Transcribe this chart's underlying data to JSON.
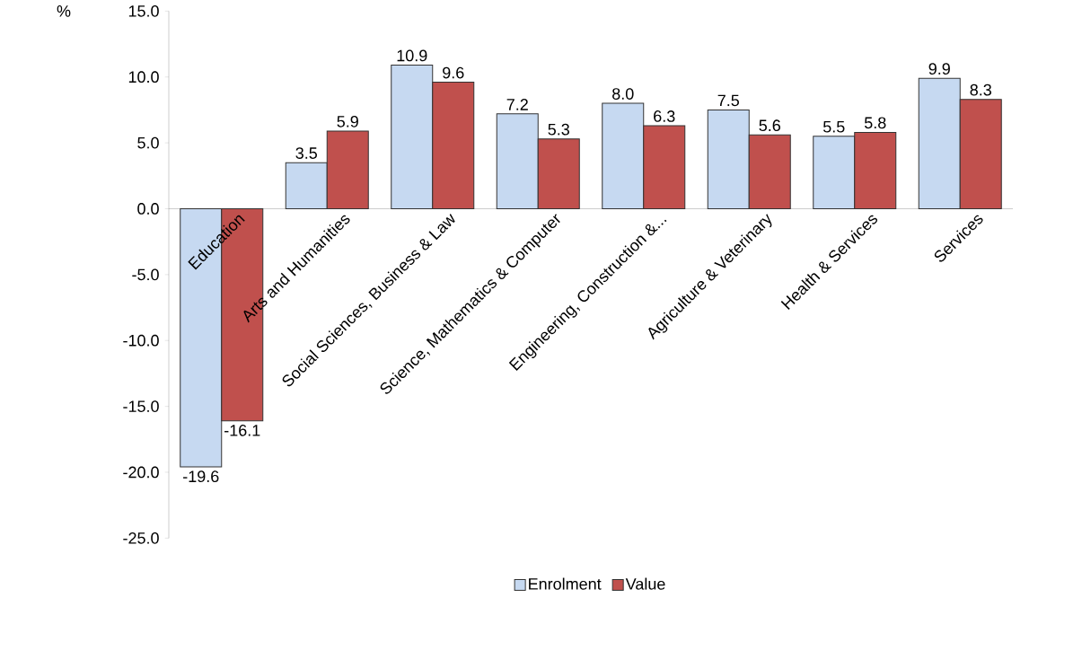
{
  "chart_data": {
    "type": "bar",
    "ylabel": "%",
    "categories": [
      "Education",
      "Arts and Humanities",
      "Social Sciences, Business & Law",
      "Science, Mathematics & Computer",
      "Engineering, Construction &...",
      "Agriculture & Veterinary",
      "Health & Services",
      "Services"
    ],
    "series": [
      {
        "name": "Enrolment",
        "color": "#c6d9f1",
        "values": [
          -19.6,
          3.5,
          10.9,
          7.2,
          8.0,
          7.5,
          5.5,
          9.9
        ],
        "value_labels": [
          "-19.6",
          "3.5",
          "10.9",
          "7.2",
          "8.0",
          "7.5",
          "5.5",
          "9.9"
        ]
      },
      {
        "name": "Value",
        "color": "#c0504d",
        "values": [
          -16.1,
          5.9,
          9.6,
          5.3,
          6.3,
          5.6,
          5.8,
          8.3
        ],
        "value_labels": [
          "-16.1",
          "5.9",
          "9.6",
          "5.3",
          "6.3",
          "5.6",
          "5.8",
          "8.3"
        ]
      }
    ],
    "ylim": [
      -25,
      15
    ],
    "yticks": [
      {
        "value": -25,
        "label": "-25.0"
      },
      {
        "value": -20,
        "label": "-20.0"
      },
      {
        "value": -15,
        "label": "-15.0"
      },
      {
        "value": -10,
        "label": "-10.0"
      },
      {
        "value": -5,
        "label": "-5.0"
      },
      {
        "value": 0,
        "label": "0.0"
      },
      {
        "value": 5,
        "label": "5.0"
      },
      {
        "value": 10,
        "label": "10.0"
      },
      {
        "value": 15,
        "label": "15.0"
      }
    ],
    "legend": "bottom",
    "grid": false
  }
}
